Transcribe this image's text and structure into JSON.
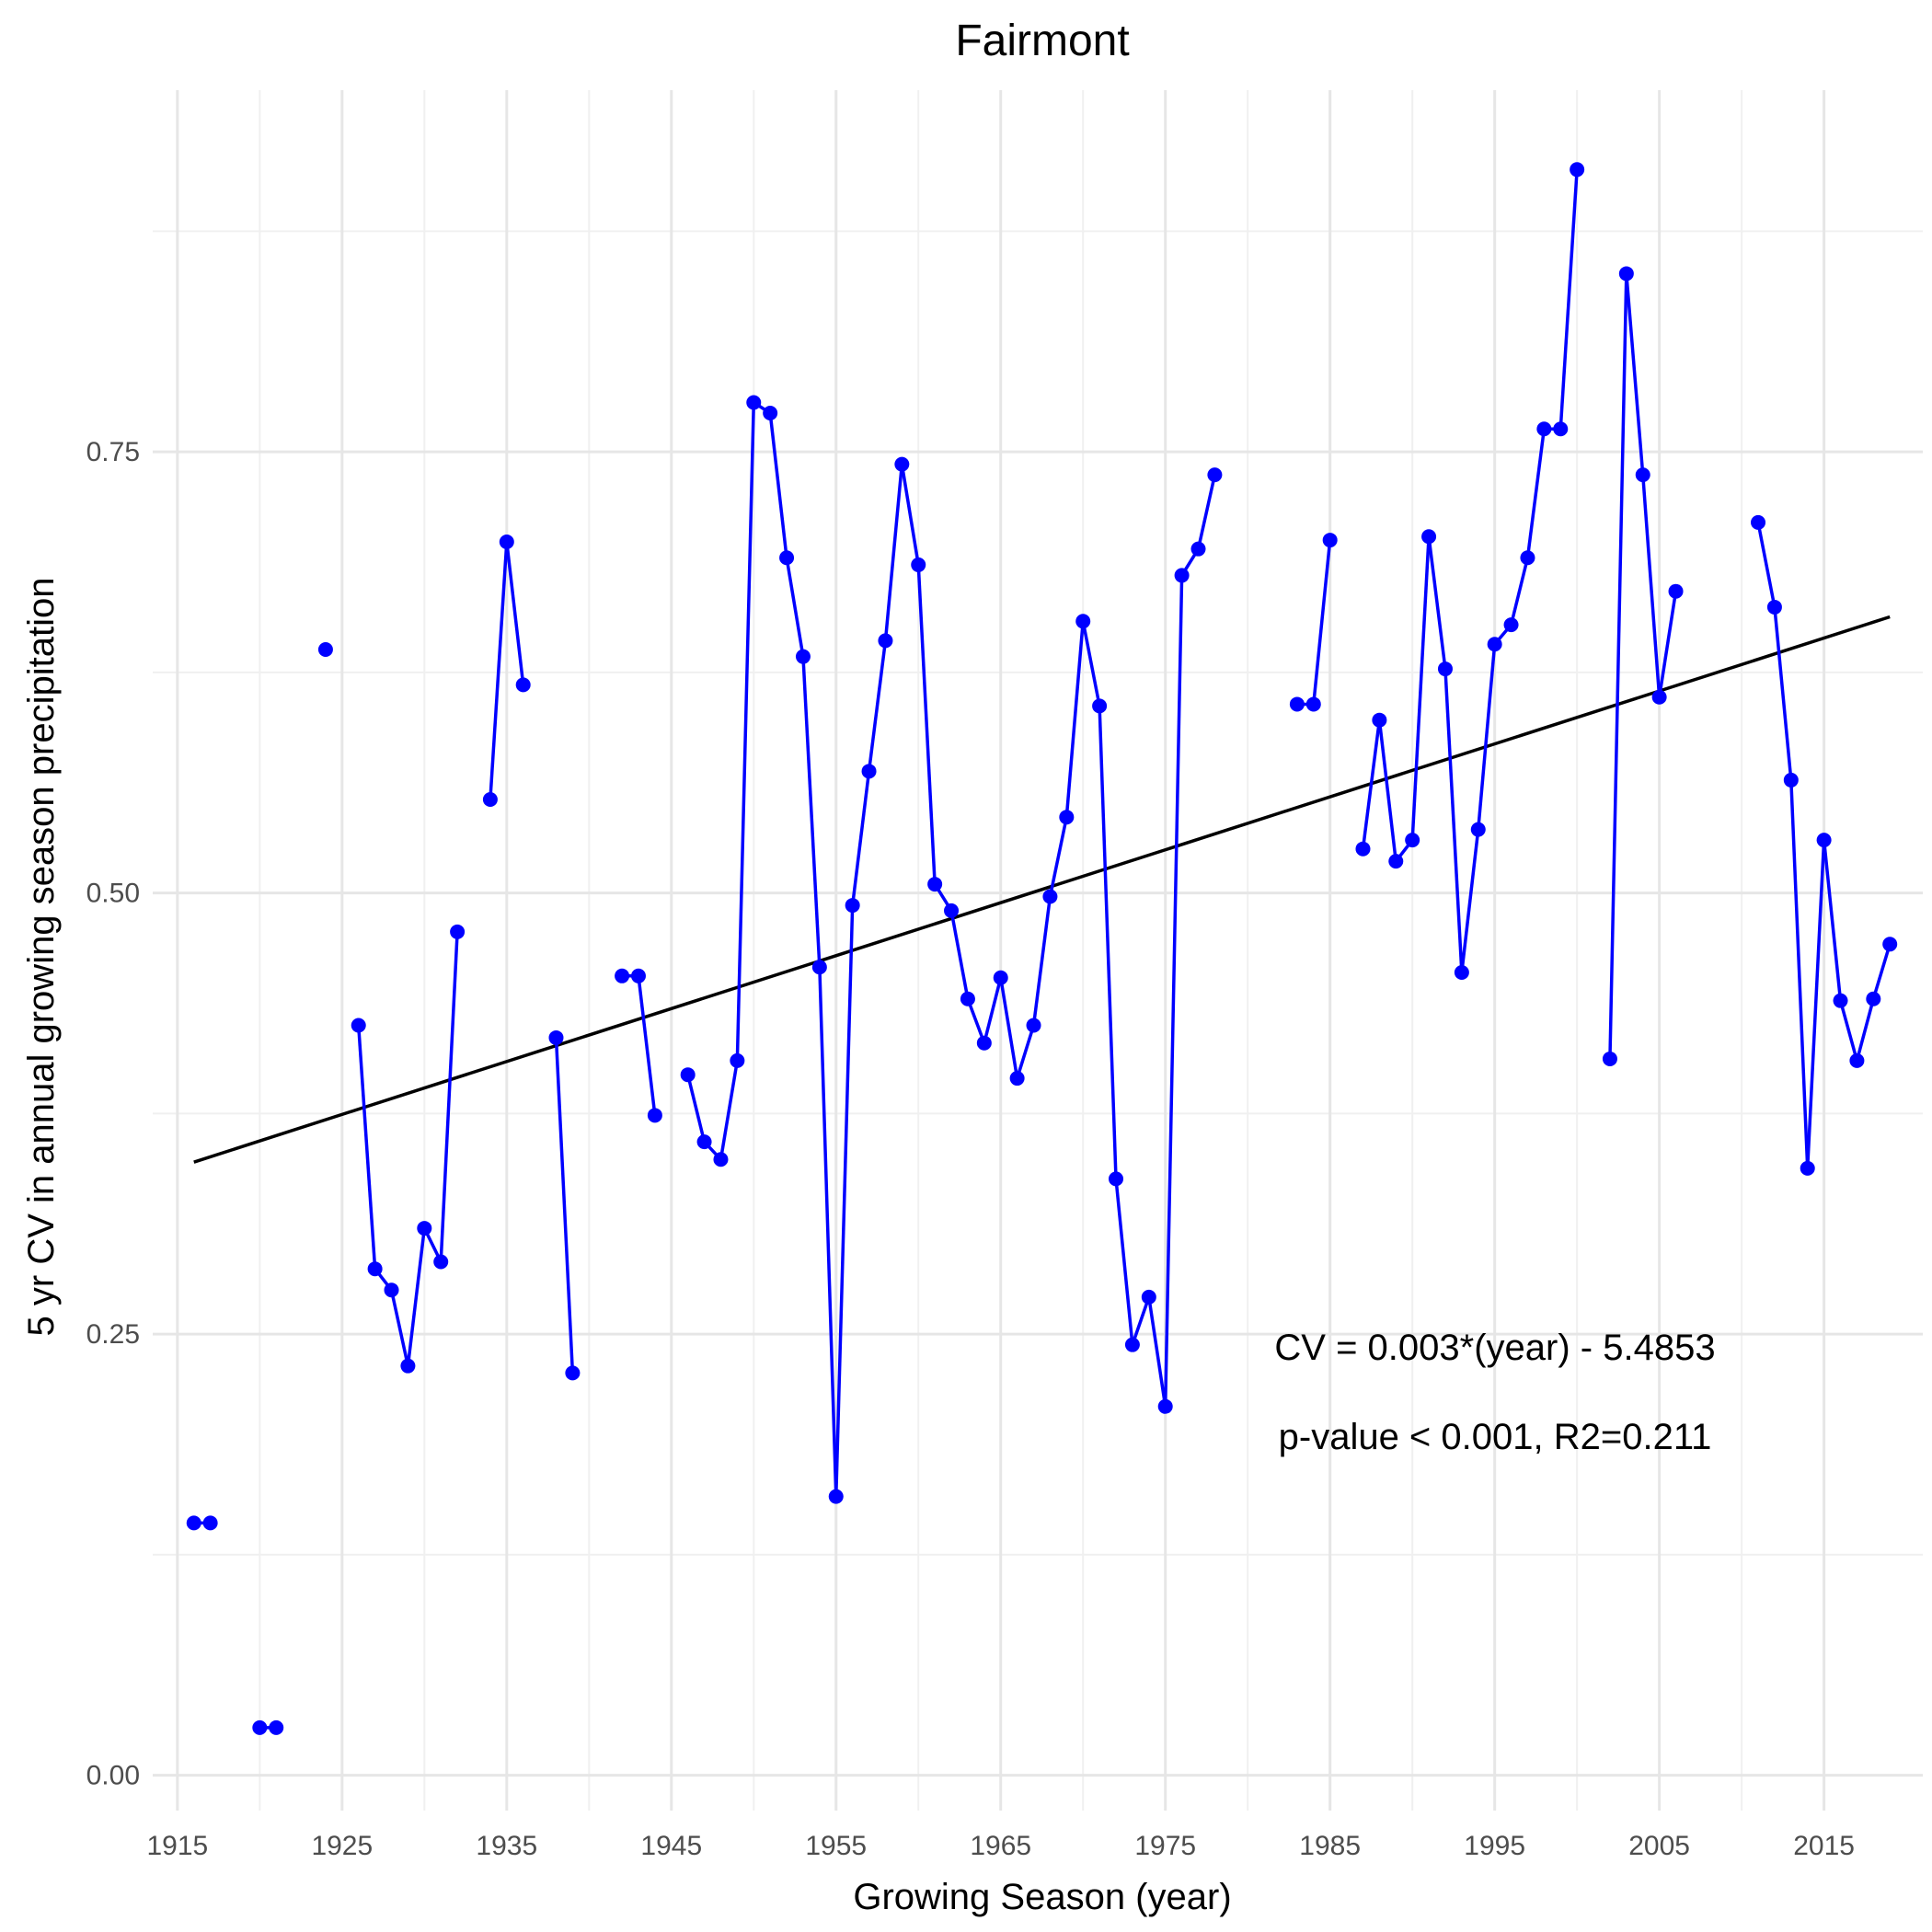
{
  "chart_data": {
    "type": "line",
    "title": "Fairmont",
    "xlabel": "Growing Season (year)",
    "ylabel": "5 yr CV in annual growing season precipitation",
    "xlim": [
      1913.5,
      2021
    ],
    "ylim": [
      -0.02,
      0.955
    ],
    "x_ticks": [
      1915,
      1925,
      1935,
      1945,
      1955,
      1965,
      1975,
      1985,
      1995,
      2005,
      2015
    ],
    "y_ticks": [
      0.0,
      0.25,
      0.5,
      0.75
    ],
    "y_tick_labels": [
      "0.00",
      "0.25",
      "0.50",
      "0.75"
    ],
    "grid": true,
    "series": [
      {
        "color": "#0000ff",
        "points": [
          [
            1916,
            0.143
          ],
          [
            1917,
            0.143
          ],
          [
            1920,
            0.027
          ],
          [
            1921,
            0.027
          ],
          [
            1924,
            0.638
          ],
          [
            1926,
            0.425
          ],
          [
            1927,
            0.287
          ],
          [
            1928,
            0.275
          ],
          [
            1929,
            0.232
          ],
          [
            1930,
            0.31
          ],
          [
            1931,
            0.291
          ],
          [
            1932,
            0.478
          ],
          [
            1934,
            0.553
          ],
          [
            1935,
            0.699
          ],
          [
            1936,
            0.618
          ],
          [
            1938,
            0.418
          ],
          [
            1939,
            0.228
          ],
          [
            1942,
            0.453
          ],
          [
            1943,
            0.453
          ],
          [
            1944,
            0.374
          ],
          [
            1946,
            0.397
          ],
          [
            1947,
            0.359
          ],
          [
            1948,
            0.349
          ],
          [
            1949,
            0.405
          ],
          [
            1950,
            0.778
          ],
          [
            1951,
            0.772
          ],
          [
            1952,
            0.69
          ],
          [
            1953,
            0.634
          ],
          [
            1954,
            0.458
          ],
          [
            1955,
            0.158
          ],
          [
            1956,
            0.493
          ],
          [
            1957,
            0.569
          ],
          [
            1958,
            0.643
          ],
          [
            1959,
            0.743
          ],
          [
            1960,
            0.686
          ],
          [
            1961,
            0.505
          ],
          [
            1962,
            0.49
          ],
          [
            1963,
            0.44
          ],
          [
            1964,
            0.415
          ],
          [
            1965,
            0.452
          ],
          [
            1966,
            0.395
          ],
          [
            1967,
            0.425
          ],
          [
            1968,
            0.498
          ],
          [
            1969,
            0.543
          ],
          [
            1970,
            0.654
          ],
          [
            1971,
            0.606
          ],
          [
            1972,
            0.338
          ],
          [
            1973,
            0.244
          ],
          [
            1974,
            0.271
          ],
          [
            1975,
            0.209
          ],
          [
            1976,
            0.68
          ],
          [
            1977,
            0.695
          ],
          [
            1978,
            0.737
          ],
          [
            1983,
            0.607
          ],
          [
            1984,
            0.607
          ],
          [
            1985,
            0.7
          ],
          [
            1987,
            0.525
          ],
          [
            1988,
            0.598
          ],
          [
            1989,
            0.518
          ],
          [
            1990,
            0.53
          ],
          [
            1991,
            0.702
          ],
          [
            1992,
            0.627
          ],
          [
            1993,
            0.455
          ],
          [
            1994,
            0.536
          ],
          [
            1995,
            0.641
          ],
          [
            1996,
            0.652
          ],
          [
            1997,
            0.69
          ],
          [
            1998,
            0.763
          ],
          [
            1999,
            0.763
          ],
          [
            2000,
            0.91
          ],
          [
            2002,
            0.406
          ],
          [
            2003,
            0.851
          ],
          [
            2004,
            0.737
          ],
          [
            2005,
            0.611
          ],
          [
            2006,
            0.671
          ],
          [
            2011,
            0.71
          ],
          [
            2012,
            0.662
          ],
          [
            2013,
            0.564
          ],
          [
            2014,
            0.344
          ],
          [
            2015,
            0.53
          ],
          [
            2016,
            0.439
          ],
          [
            2017,
            0.405
          ],
          [
            2018,
            0.44
          ],
          [
            2019,
            0.471
          ]
        ]
      }
    ],
    "trendline": {
      "color": "#000000",
      "x": [
        1916,
        2019
      ],
      "y": [
        0.3475,
        0.6565
      ]
    },
    "annotations": [
      "CV = 0.003*(year) - 5.4853",
      "p-value < 0.001, R2=0.211"
    ]
  }
}
